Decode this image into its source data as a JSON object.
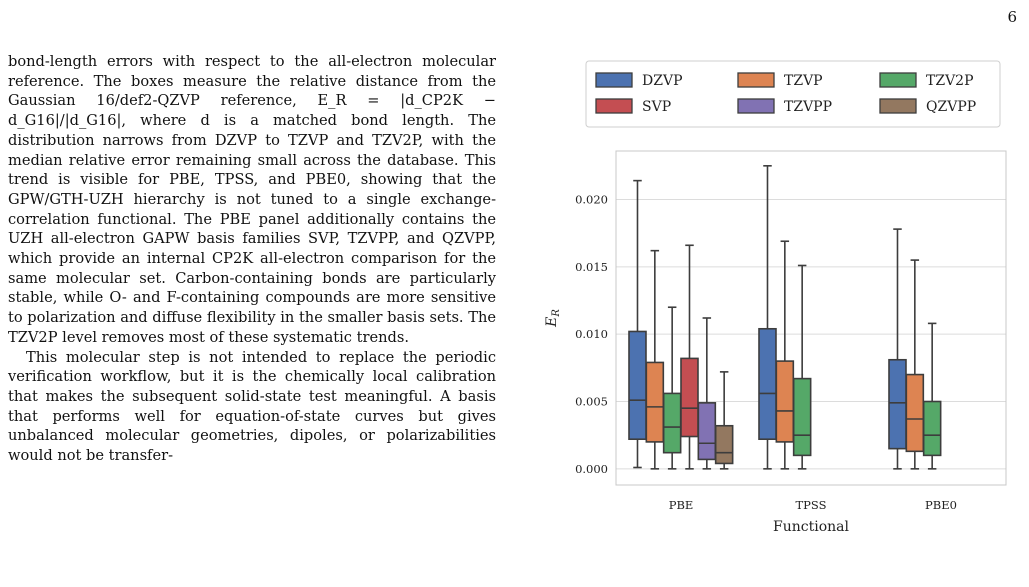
{
  "page": {
    "number": "6",
    "paragraphs": [
      "bond-length errors with respect to the all-electron molecular reference. The boxes measure the relative distance from the Gaussian 16/def2-QZVP reference, E_R = |d_CP2K − d_G16|/|d_G16|, where d is a matched bond length. The distribution narrows from DZVP to TZVP and TZV2P, with the median relative error remaining small across the database. This trend is visible for PBE, TPSS, and PBE0, showing that the GPW/GTH-UZH hierarchy is not tuned to a single exchange-correlation functional. The PBE panel additionally contains the UZH all-electron GAPW basis families SVP, TZVPP, and QZVPP, which provide an internal CP2K all-electron comparison for the same molecular set. Carbon-containing bonds are particularly stable, while O- and F-containing compounds are more sensitive to polarization and diffuse flexibility in the smaller basis sets. The TZV2P level removes most of these systematic trends.",
      "This molecular step is not intended to replace the periodic verification workflow, but it is the chemically local calibration that makes the subsequent solid-state test meaningful. A basis that performs well for equation-of-state curves but gives unbalanced molecular geometries, dipoles, or polarizabilities would not be transfer-"
    ]
  },
  "colors": {
    "DZVP": "#4c72b0",
    "TZVP": "#dd8452",
    "TZV2P": "#55a868",
    "SVP": "#c44e52",
    "TZVPP": "#8172b3",
    "QZVPP": "#937860"
  },
  "chart_data": {
    "type": "box",
    "xlabel": "Functional",
    "ylabel": "E_R",
    "ylim": [
      -0.0012,
      0.0236
    ],
    "yticks": [
      "0.000",
      "0.005",
      "0.010",
      "0.015",
      "0.020"
    ],
    "grid": true,
    "legend": {
      "placement": "top",
      "entries": [
        "DZVP",
        "TZVP",
        "TZV2P",
        "SVP",
        "TZVPP",
        "QZVPP"
      ]
    },
    "categories": [
      "PBE",
      "TPSS",
      "PBE0"
    ],
    "series": [
      {
        "name": "DZVP",
        "boxes": [
          {
            "category": "PBE",
            "whisker_low": 0.0001,
            "q1": 0.0022,
            "median": 0.0051,
            "q3": 0.0102,
            "whisker_high": 0.0214
          },
          {
            "category": "TPSS",
            "whisker_low": 0.0,
            "q1": 0.0022,
            "median": 0.0056,
            "q3": 0.0104,
            "whisker_high": 0.0225
          },
          {
            "category": "PBE0",
            "whisker_low": 0.0,
            "q1": 0.0015,
            "median": 0.0049,
            "q3": 0.0081,
            "whisker_high": 0.0178
          }
        ]
      },
      {
        "name": "TZVP",
        "boxes": [
          {
            "category": "PBE",
            "whisker_low": 0.0,
            "q1": 0.002,
            "median": 0.0046,
            "q3": 0.0079,
            "whisker_high": 0.0162
          },
          {
            "category": "TPSS",
            "whisker_low": 0.0,
            "q1": 0.002,
            "median": 0.0043,
            "q3": 0.008,
            "whisker_high": 0.0169
          },
          {
            "category": "PBE0",
            "whisker_low": 0.0,
            "q1": 0.0013,
            "median": 0.0037,
            "q3": 0.007,
            "whisker_high": 0.0155
          }
        ]
      },
      {
        "name": "TZV2P",
        "boxes": [
          {
            "category": "PBE",
            "whisker_low": 0.0,
            "q1": 0.0012,
            "median": 0.0031,
            "q3": 0.0056,
            "whisker_high": 0.012
          },
          {
            "category": "TPSS",
            "whisker_low": 0.0,
            "q1": 0.001,
            "median": 0.0025,
            "q3": 0.0067,
            "whisker_high": 0.0151
          },
          {
            "category": "PBE0",
            "whisker_low": 0.0,
            "q1": 0.001,
            "median": 0.0025,
            "q3": 0.005,
            "whisker_high": 0.0108
          }
        ]
      },
      {
        "name": "SVP",
        "boxes": [
          {
            "category": "PBE",
            "whisker_low": 0.0,
            "q1": 0.0024,
            "median": 0.0045,
            "q3": 0.0082,
            "whisker_high": 0.0166
          }
        ]
      },
      {
        "name": "TZVPP",
        "boxes": [
          {
            "category": "PBE",
            "whisker_low": 0.0,
            "q1": 0.0007,
            "median": 0.0019,
            "q3": 0.0049,
            "whisker_high": 0.0112
          }
        ]
      },
      {
        "name": "QZVPP",
        "boxes": [
          {
            "category": "PBE",
            "whisker_low": 0.0,
            "q1": 0.0004,
            "median": 0.0012,
            "q3": 0.0032,
            "whisker_high": 0.0072
          }
        ]
      }
    ]
  }
}
